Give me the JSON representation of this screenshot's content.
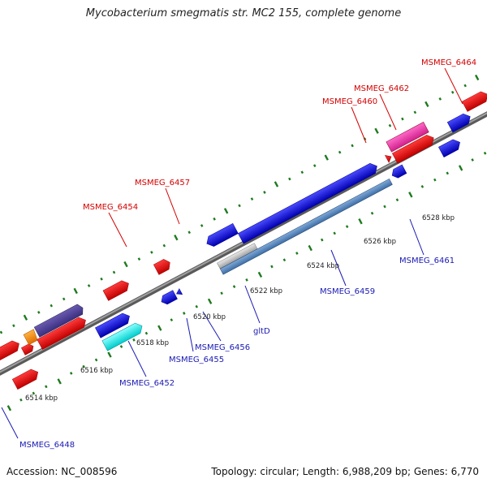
{
  "title": "Mycobacterium smegmatis str. MC2 155, complete genome",
  "footer": {
    "accession": "Accession: NC_008596",
    "summary": "Topology: circular; Length: 6,988,209 bp; Genes: 6,770"
  },
  "colors": {
    "backbone": "#8c8c8c",
    "tick": "#1e7a1e",
    "forward_gene": "#e01010",
    "reverse_gene": "#1414d8",
    "label_forward": "#d40000",
    "label_reverse": "#1a1ab4"
  },
  "ticks": [
    {
      "label": "6514 kbp"
    },
    {
      "label": "6516 kbp"
    },
    {
      "label": "6518 kbp"
    },
    {
      "label": "6520 kbp"
    },
    {
      "label": "6522 kbp"
    },
    {
      "label": "6524 kbp"
    },
    {
      "label": "6526 kbp"
    },
    {
      "label": "6528 kbp"
    }
  ],
  "labels_forward": [
    {
      "name": "MSMEG_6464"
    },
    {
      "name": "MSMEG_6462"
    },
    {
      "name": "MSMEG_6460"
    },
    {
      "name": "MSMEG_6457"
    },
    {
      "name": "MSMEG_6454"
    }
  ],
  "labels_reverse": [
    {
      "name": "MSMEG_6461"
    },
    {
      "name": "MSMEG_6459"
    },
    {
      "name": "gltD"
    },
    {
      "name": "MSMEG_6456"
    },
    {
      "name": "MSMEG_6455"
    },
    {
      "name": "MSMEG_6452"
    },
    {
      "name": "MSMEG_6448"
    }
  ]
}
